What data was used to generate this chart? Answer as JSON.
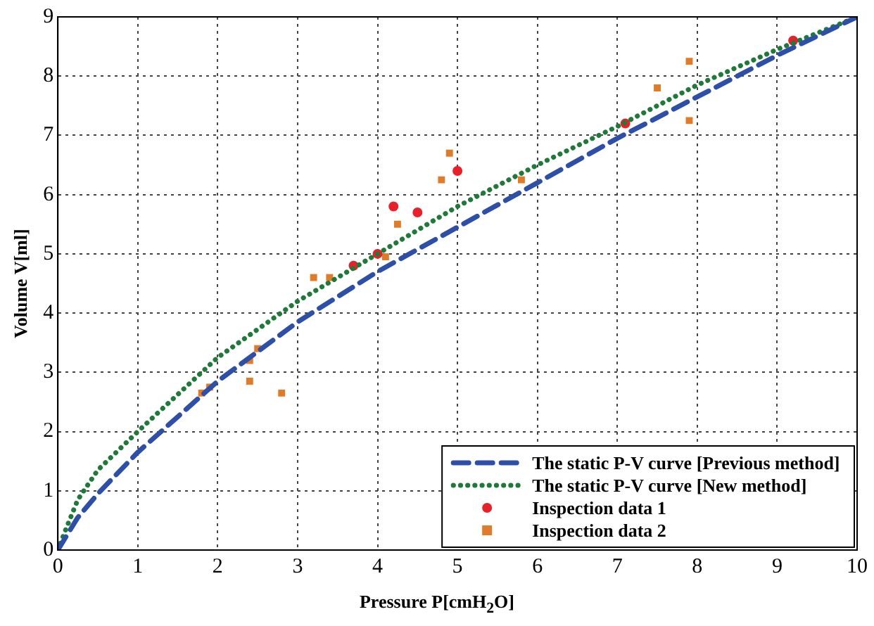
{
  "chart_data": {
    "type": "line",
    "xlabel": "Pressure P[cmH$_{2}$O]",
    "ylabel": "Volume V[ml]",
    "xlim": [
      0,
      10
    ],
    "ylim": [
      0,
      9
    ],
    "xticks": [
      0,
      1,
      2,
      3,
      4,
      5,
      6,
      7,
      8,
      9,
      10
    ],
    "yticks": [
      0,
      1,
      2,
      3,
      4,
      5,
      6,
      7,
      8,
      9
    ],
    "grid": true,
    "legend": "bottom right",
    "series": [
      {
        "name": "The static P-V curve [Previous method]",
        "type": "line",
        "color": "#2e4fa8",
        "line_style": "dashed",
        "marker": "none",
        "x": [
          0,
          0.25,
          0.5,
          1,
          2,
          3,
          4,
          5,
          6,
          7,
          8,
          9,
          10
        ],
        "values": [
          0,
          0.55,
          0.95,
          1.65,
          2.85,
          3.85,
          4.7,
          5.45,
          6.2,
          6.95,
          7.65,
          8.35,
          9.0
        ]
      },
      {
        "name": "The static P-V curve [New method]",
        "type": "line",
        "color": "#1f7a3a",
        "line_style": "dotted",
        "marker": "none",
        "x": [
          0,
          0.1,
          0.25,
          0.5,
          1,
          2,
          3,
          4,
          5,
          6,
          7,
          8,
          9,
          10
        ],
        "values": [
          0,
          0.35,
          0.85,
          1.35,
          2.0,
          3.25,
          4.2,
          5.0,
          5.8,
          6.5,
          7.15,
          7.85,
          8.45,
          9.0
        ]
      },
      {
        "name": "Inspection data 1",
        "type": "scatter",
        "color": "#e8202a",
        "marker": "circle",
        "x": [
          3.7,
          4.0,
          4.2,
          4.5,
          5.0,
          7.1,
          9.2
        ],
        "values": [
          4.8,
          5.0,
          5.8,
          5.7,
          6.4,
          7.2,
          8.6
        ]
      },
      {
        "name": "Inspection data 2",
        "type": "scatter",
        "color": "#e07b2a",
        "marker": "square",
        "x": [
          1.8,
          1.9,
          2.4,
          2.4,
          2.5,
          2.8,
          3.2,
          3.4,
          4.1,
          4.25,
          4.8,
          4.9,
          5.8,
          7.5,
          7.9,
          7.9
        ],
        "values": [
          2.65,
          2.75,
          3.2,
          2.85,
          3.4,
          2.65,
          4.6,
          4.6,
          4.95,
          5.5,
          6.25,
          6.7,
          6.25,
          7.8,
          8.25,
          7.25
        ]
      }
    ]
  }
}
